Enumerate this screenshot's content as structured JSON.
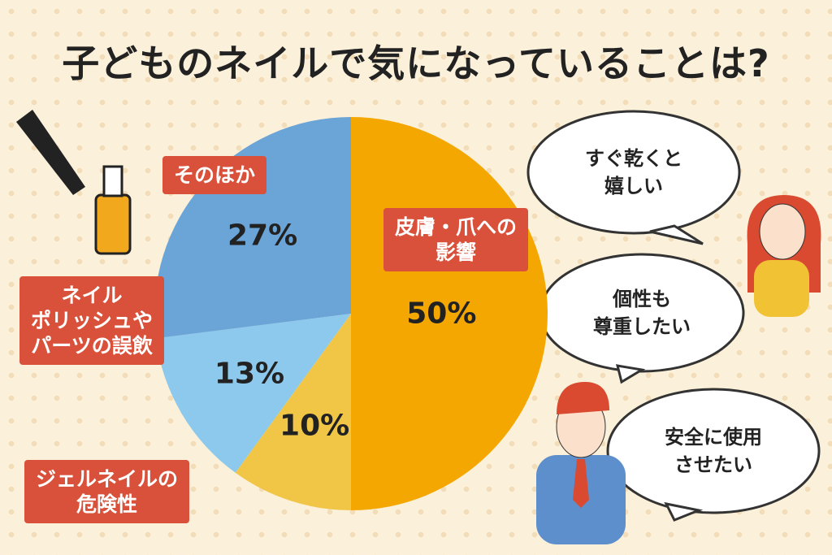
{
  "chart_data": {
    "type": "pie",
    "title": "子どものネイルで気になっていることは?",
    "categories": [
      "皮膚・爪への\n影響",
      "ジェルネイルの\n危険性",
      "ネイル\nポリッシュや\nパーツの誤飲",
      "そのほか"
    ],
    "values": [
      50,
      10,
      13,
      27
    ],
    "value_labels": [
      "50%",
      "10%",
      "13%",
      "27%"
    ],
    "colors": [
      "#f4a700",
      "#f1c646",
      "#8dc9ec",
      "#6ba4d7"
    ],
    "annotations": [
      "すぐ乾くと\n嬉しい",
      "個性も\n尊重したい",
      "安全に使用\nさせたい"
    ]
  }
}
